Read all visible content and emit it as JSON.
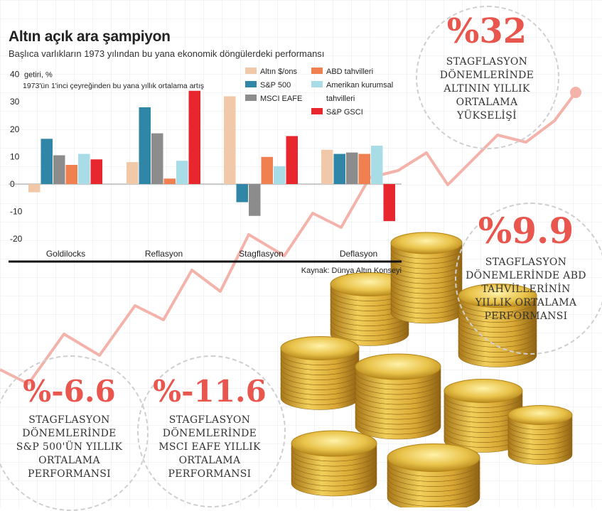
{
  "title": "Altın açık ara şampiyon",
  "subtitle": "Başlıca varlıkların 1973 yılından bu yana ekonomik döngülerdeki performansı",
  "chart_data": {
    "type": "bar",
    "ylabel": "getiri, %",
    "note": "1973'ün 1'inci çeyreğinden bu yana yıllık ortalama artış",
    "source": "Kaynak: Dünya Altın Konseyi",
    "ylim": [
      -20,
      40
    ],
    "yticks": [
      40,
      30,
      20,
      10,
      0,
      -10,
      -20
    ],
    "categories": [
      "Goldilocks",
      "Reflasyon",
      "Stagflasyon",
      "Deflasyon"
    ],
    "series": [
      {
        "name": "Altın $/ons",
        "color": "#f2c9a8",
        "values": [
          -3,
          8,
          32,
          12.5
        ]
      },
      {
        "name": "S&P 500",
        "color": "#2f86a6",
        "values": [
          16.5,
          28,
          -6.6,
          11
        ]
      },
      {
        "name": "MSCI EAFE",
        "color": "#8c8c8c",
        "values": [
          10.5,
          18.5,
          -11.6,
          11.5
        ]
      },
      {
        "name": "ABD tahvilleri",
        "color": "#f08050",
        "values": [
          7,
          2,
          9.9,
          11
        ]
      },
      {
        "name": "Amerikan kurumsal tahvilleri",
        "color": "#a8dde8",
        "values": [
          11,
          8.5,
          6.5,
          14
        ]
      },
      {
        "name": "S&P GSCI",
        "color": "#e8262e",
        "values": [
          9,
          34,
          17.5,
          -13.5
        ]
      }
    ]
  },
  "stats": [
    {
      "value": "%32",
      "text": "STAGFLASYON DÖNEMLERİNDE ALTININ YILLIK ORTALAMA YÜKSELİŞİ"
    },
    {
      "value": "%9.9",
      "text": "STAGFLASYON DÖNEMLERİNDE ABD TAHVİLLERİNİN YILLIK ORTALAMA PERFORMANSI"
    },
    {
      "value": "%-6.6",
      "text": "STAGFLASYON DÖNEMLERİNDE S&P 500'ÜN YILLIK ORTALAMA PERFORMANSI"
    },
    {
      "value": "%-11.6",
      "text": "STAGFLASYON DÖNEMLERİNDE MSCI EAFE YILLIK ORTALAMA PERFORMANSI"
    }
  ]
}
